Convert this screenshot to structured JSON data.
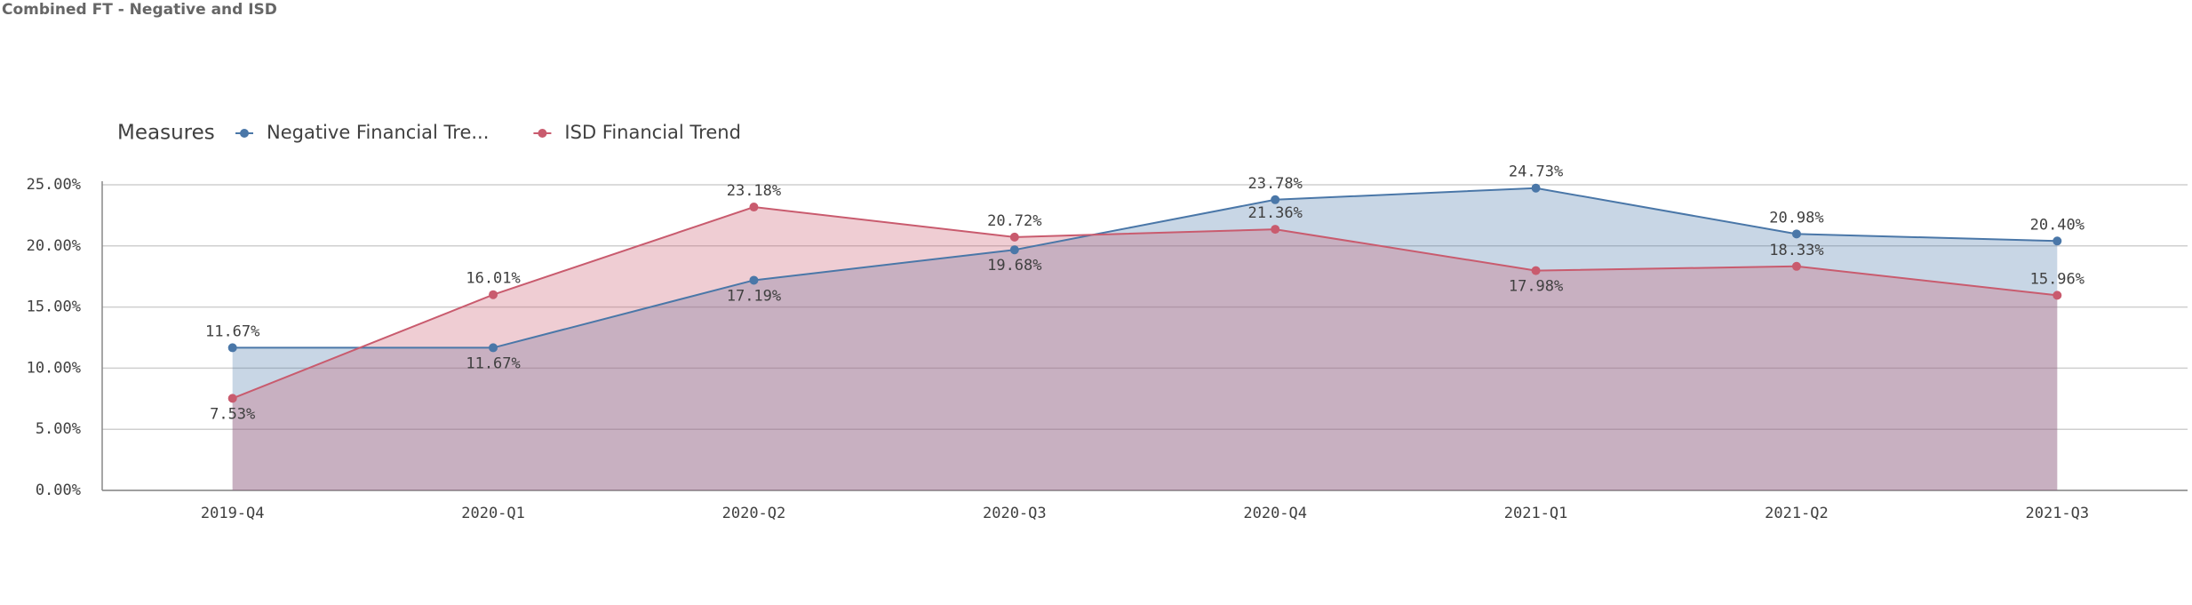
{
  "chart_data": {
    "type": "area",
    "title": "Combined FT - Negative and ISD",
    "legend_title": "Measures",
    "legend": "top-left",
    "grid": true,
    "categories": [
      "2019-Q4",
      "2020-Q1",
      "2020-Q2",
      "2020-Q3",
      "2020-Q4",
      "2021-Q1",
      "2021-Q2",
      "2021-Q3"
    ],
    "series": [
      {
        "name": "Negative Financial Tre...",
        "color": "#4a77a8",
        "values": [
          11.67,
          11.67,
          17.19,
          19.68,
          23.78,
          24.73,
          20.98,
          20.4
        ],
        "value_labels": [
          "11.67%",
          "11.67%",
          "17.19%",
          "19.68%",
          "23.78%",
          "24.73%",
          "20.98%",
          "20.40%"
        ]
      },
      {
        "name": "ISD Financial Trend",
        "color": "#c95b6e",
        "values": [
          7.53,
          16.01,
          23.18,
          20.72,
          21.36,
          17.98,
          18.33,
          15.96
        ],
        "value_labels": [
          "7.53%",
          "16.01%",
          "23.18%",
          "20.72%",
          "21.36%",
          "17.98%",
          "18.33%",
          "15.96%"
        ]
      }
    ],
    "ylim": [
      0,
      25
    ],
    "yticks": [
      {
        "value": 0,
        "label": "0.00%"
      },
      {
        "value": 5,
        "label": "5.00%"
      },
      {
        "value": 10,
        "label": "10.00%"
      },
      {
        "value": 15,
        "label": "15.00%"
      },
      {
        "value": 20,
        "label": "20.00%"
      },
      {
        "value": 25,
        "label": "25.00%"
      }
    ]
  }
}
